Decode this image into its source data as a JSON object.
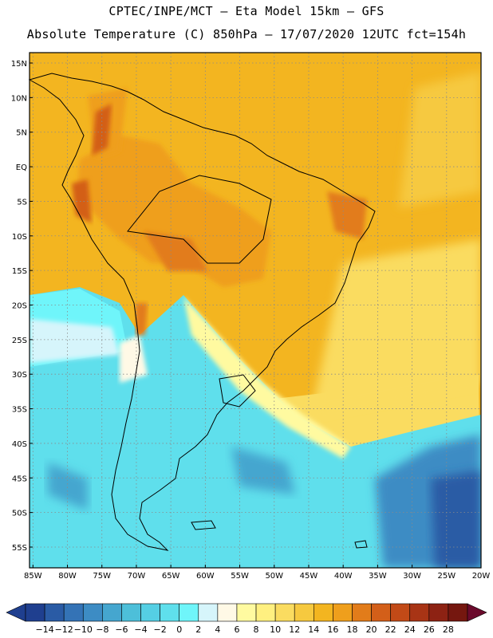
{
  "header": {
    "line1": "CPTEC/INPE/MCT –  Eta Model 15km – GFS",
    "line2": "Absolute Temperature (C) 850hPa – 17/07/2020 12UTC fct=154h"
  },
  "map": {
    "lat_labels": [
      "15N",
      "10N",
      "5N",
      "EQ",
      "5S",
      "10S",
      "15S",
      "20S",
      "25S",
      "30S",
      "35S",
      "40S",
      "45S",
      "50S",
      "55S"
    ],
    "lon_labels": [
      "85W",
      "80W",
      "75W",
      "70W",
      "65W",
      "60W",
      "55W",
      "50W",
      "45W",
      "40W",
      "35W",
      "30W",
      "25W",
      "20W"
    ],
    "grid": "dotted",
    "lat_range": [
      -58,
      16.5
    ],
    "lon_range": [
      -85.5,
      -20
    ]
  },
  "colorbar": {
    "tick_labels": [
      "-14",
      "-12",
      "-10",
      "-8",
      "-6",
      "-4",
      "-2",
      "0",
      "2",
      "4",
      "6",
      "8",
      "10",
      "12",
      "14",
      "16",
      "18",
      "20",
      "22",
      "24",
      "26",
      "28"
    ],
    "colors": [
      "#1f3f8f",
      "#1f3f8f",
      "#2a5ba5",
      "#3473b6",
      "#3d8cc4",
      "#45a6cf",
      "#4dbfd9",
      "#55cfe4",
      "#5fdfec",
      "#6ff5fa",
      "#d6f5fb",
      "#fff9e6",
      "#fffaa0",
      "#fff080",
      "#fadc60",
      "#f6c93f",
      "#f3b520",
      "#ef9f1c",
      "#e27c1a",
      "#d35f19",
      "#c24a17",
      "#a83415",
      "#8d2213",
      "#75170f",
      "#6b0a2c"
    ]
  }
}
